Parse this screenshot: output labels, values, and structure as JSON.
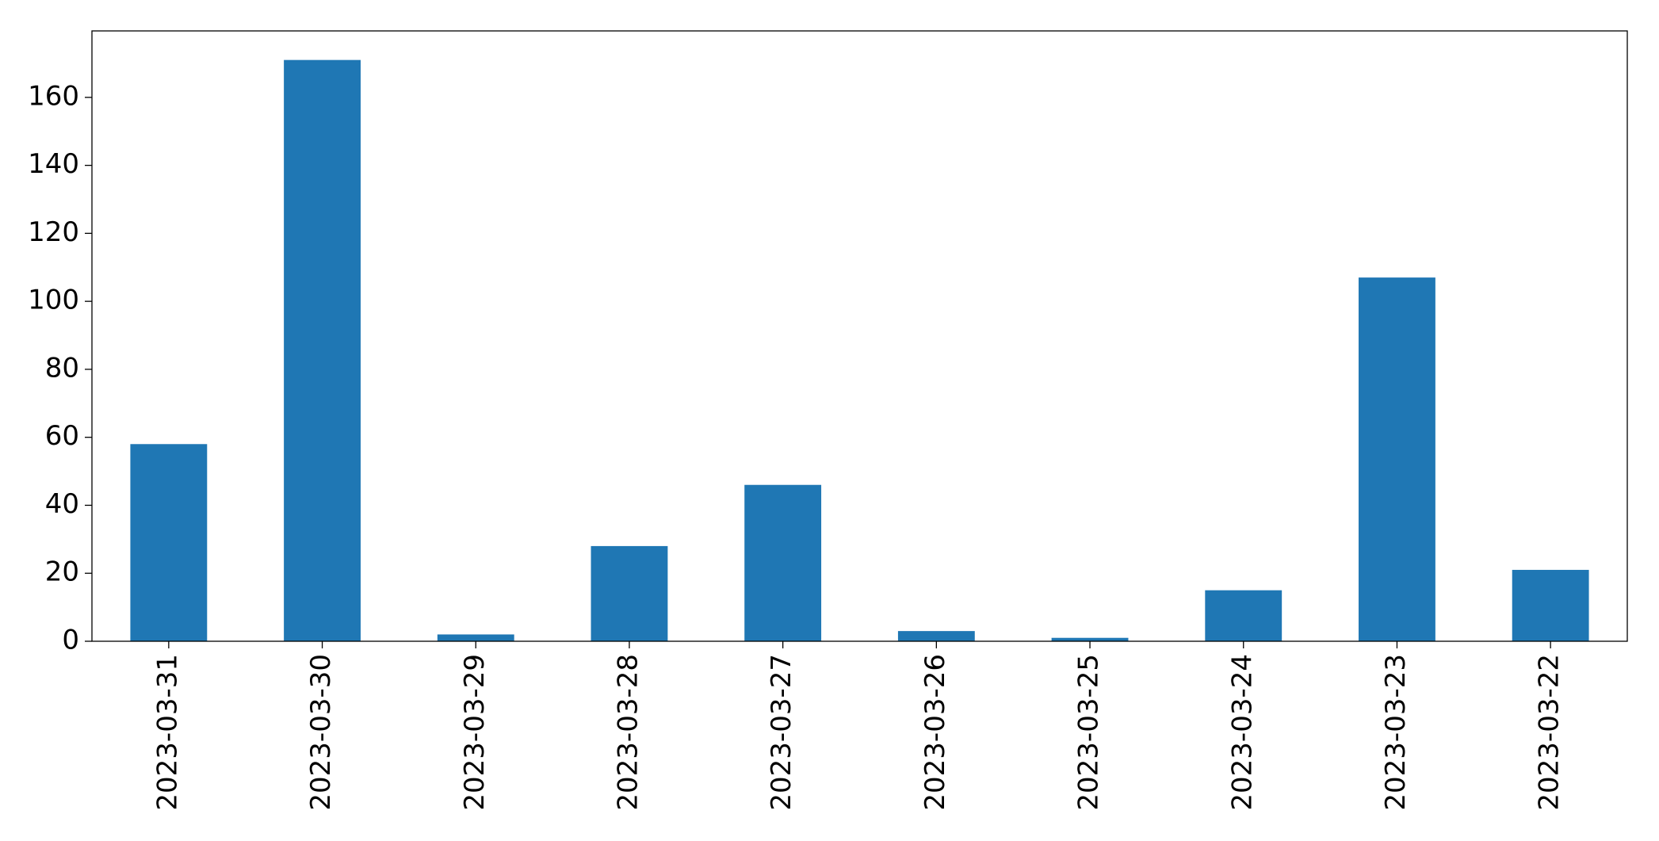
{
  "chart_data": {
    "type": "bar",
    "categories": [
      "2023-03-31",
      "2023-03-30",
      "2023-03-29",
      "2023-03-28",
      "2023-03-27",
      "2023-03-26",
      "2023-03-25",
      "2023-03-24",
      "2023-03-23",
      "2023-03-22"
    ],
    "values": [
      58,
      171,
      2,
      28,
      46,
      3,
      1,
      15,
      107,
      21
    ],
    "color": "#1f77b4",
    "ylim": [
      0,
      179.55
    ],
    "yticks": [
      0,
      20,
      40,
      60,
      80,
      100,
      120,
      140,
      160
    ],
    "grid": false
  }
}
